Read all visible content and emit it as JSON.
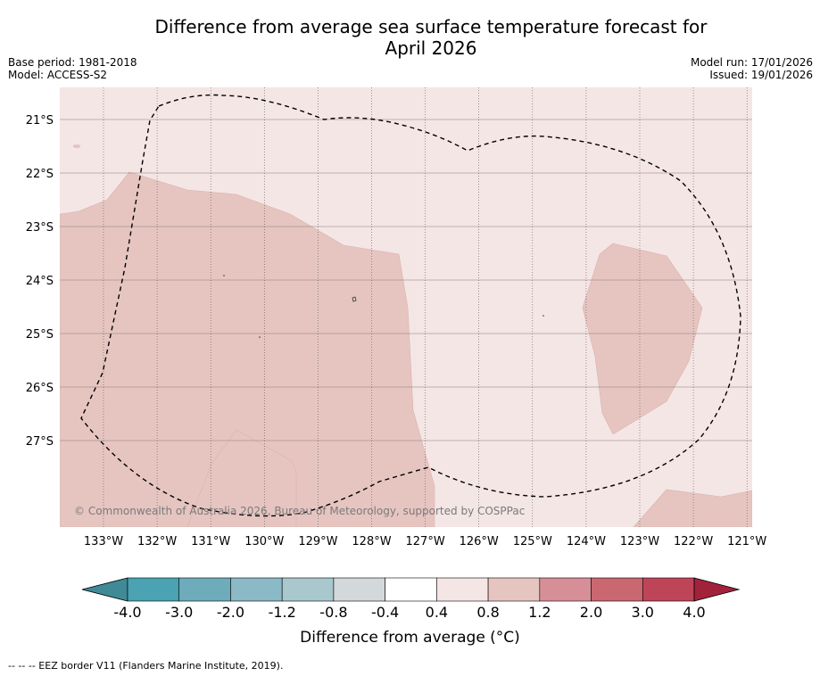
{
  "title_line1": "Difference from average sea surface temperature forecast for",
  "title_line2": "April 2026",
  "meta_left": {
    "base_period": "Base period: 1981-2018",
    "model": "Model: ACCESS-S2"
  },
  "meta_right": {
    "model_run": "Model run: 17/01/2026",
    "issued": "Issued: 19/01/2026"
  },
  "lat_labels": [
    "21°S",
    "22°S",
    "23°S",
    "24°S",
    "25°S",
    "26°S",
    "27°S"
  ],
  "lon_labels": [
    "133°W",
    "132°W",
    "131°W",
    "130°W",
    "129°W",
    "128°W",
    "127°W",
    "126°W",
    "125°W",
    "124°W",
    "123°W",
    "122°W",
    "121°W"
  ],
  "copyright": "© Commonwealth of Australia 2026, Bureau of Meteorology, supported by COSPPac",
  "colorbar": {
    "labels": [
      "-4.0",
      "-3.0",
      "-2.0",
      "-1.2",
      "-0.8",
      "-0.4",
      "0.4",
      "0.8",
      "1.2",
      "2.0",
      "3.0",
      "4.0"
    ],
    "colors": [
      "#3f8a96",
      "#4aa2b2",
      "#6eacbb",
      "#8bb9c5",
      "#a8c8cd",
      "#d3d8da",
      "#ffffff",
      "#f4e6e5",
      "#e6c5c1",
      "#d68f97",
      "#c96871",
      "#be4558",
      "#a3223b"
    ],
    "title": "Difference from average (°C)"
  },
  "map_colors": {
    "background": "#f4e6e5",
    "warm_region": "#e6c5c1"
  },
  "footer": "--  --  -- EEZ border V11 (Flanders Marine Institute, 2019)."
}
